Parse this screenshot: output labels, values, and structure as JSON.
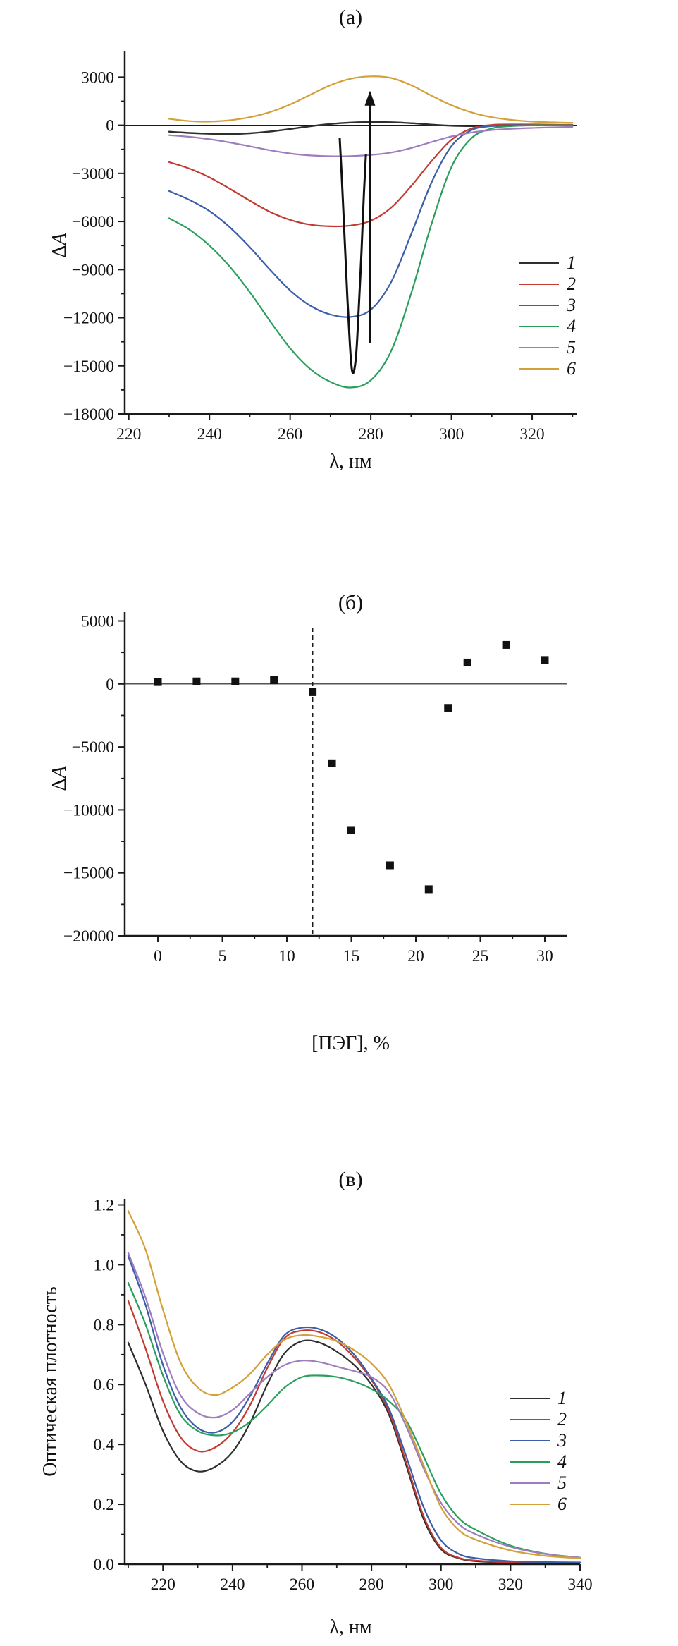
{
  "figure_background": "#ffffff",
  "axis_color": "#1a1a1a",
  "chart_data": [
    {
      "id": "a",
      "type": "line",
      "title": "(а)",
      "xlabel": "λ, нм",
      "ylabel_main": "Δ",
      "ylabel_italic": "A",
      "xlim": [
        219,
        331
      ],
      "ylim": [
        -18000,
        4600
      ],
      "x_ticks": [
        220,
        240,
        260,
        280,
        300,
        320
      ],
      "x_tick_labels": [
        "220",
        "240",
        "260",
        "280",
        "300",
        "320"
      ],
      "x_minor": [
        230,
        250,
        270,
        290,
        310,
        330
      ],
      "y_ticks": [
        3000,
        0,
        -3000,
        -6000,
        -9000,
        -12000,
        -15000,
        -18000
      ],
      "y_tick_labels": [
        "3000",
        "0",
        "−3000",
        "−6000",
        "−9000",
        "−12000",
        "−15000",
        "−18000"
      ],
      "y_minor": [
        1500,
        -1500,
        -4500,
        -7500,
        -10500,
        -13500,
        -16500
      ],
      "zero_line": true,
      "grid": false,
      "legend_position": "right-center",
      "legend": [
        "1",
        "2",
        "3",
        "4",
        "5",
        "6"
      ],
      "x": [
        230,
        235,
        240,
        245,
        250,
        255,
        260,
        265,
        270,
        275,
        280,
        285,
        290,
        295,
        300,
        305,
        310,
        315,
        320,
        325,
        330
      ],
      "series": [
        {
          "name": "1",
          "color": "#2e2e2e",
          "width": 2.4,
          "y": [
            -400,
            -480,
            -530,
            -550,
            -500,
            -390,
            -230,
            -60,
            80,
            170,
            200,
            190,
            130,
            40,
            -30,
            -50,
            -40,
            -20,
            -10,
            0,
            0
          ]
        },
        {
          "name": "2",
          "color": "#c23b32",
          "width": 2.2,
          "y": [
            -2300,
            -2700,
            -3250,
            -3950,
            -4700,
            -5400,
            -5900,
            -6200,
            -6300,
            -6250,
            -5950,
            -5150,
            -3800,
            -2250,
            -900,
            -200,
            20,
            50,
            50,
            40,
            30
          ]
        },
        {
          "name": "3",
          "color": "#3b5ea9",
          "width": 2.2,
          "y": [
            -4100,
            -4650,
            -5350,
            -6350,
            -7600,
            -9000,
            -10300,
            -11250,
            -11800,
            -11950,
            -11500,
            -9800,
            -6800,
            -3600,
            -1300,
            -300,
            -50,
            0,
            0,
            0,
            0
          ]
        },
        {
          "name": "4",
          "color": "#2b9e5e",
          "width": 2.2,
          "y": [
            -5800,
            -6500,
            -7500,
            -8800,
            -10400,
            -12200,
            -13900,
            -15200,
            -16000,
            -16350,
            -15900,
            -14100,
            -10500,
            -6200,
            -2600,
            -800,
            -200,
            -50,
            0,
            0,
            0
          ]
        },
        {
          "name": "5",
          "color": "#9d7dbe",
          "width": 2.2,
          "y": [
            -620,
            -720,
            -870,
            -1070,
            -1310,
            -1560,
            -1760,
            -1880,
            -1930,
            -1920,
            -1850,
            -1700,
            -1420,
            -1050,
            -700,
            -450,
            -300,
            -220,
            -170,
            -130,
            -100
          ]
        },
        {
          "name": "6",
          "color": "#d4a03a",
          "width": 2.2,
          "y": [
            400,
            260,
            230,
            310,
            500,
            820,
            1300,
            1900,
            2500,
            2900,
            3050,
            2950,
            2500,
            1850,
            1250,
            800,
            500,
            330,
            230,
            180,
            150
          ]
        }
      ],
      "annotations": {
        "spike_curve": {
          "description": "narrow deep black V-shaped curve, minimum ≈ −15350 at ≈275.5 нм",
          "color": "#111111",
          "x": [
            272.3,
            272.8,
            273.5,
            274.2,
            274.8,
            275.3,
            275.8,
            276.4,
            277.0,
            277.7,
            278.3,
            278.8
          ],
          "y": [
            -800,
            -3200,
            -7000,
            -10800,
            -13600,
            -15200,
            -15350,
            -14200,
            -11500,
            -7800,
            -4200,
            -1800
          ]
        },
        "arrow_up": {
          "x": 279.8,
          "y_from": -13600,
          "y_to": 2150,
          "color": "#111111"
        }
      }
    },
    {
      "id": "b",
      "type": "scatter",
      "title": "(б)",
      "xlabel": "[ПЭГ], %",
      "ylabel_main": "Δ",
      "ylabel_italic": "A",
      "xlim": [
        -2.57,
        31.75
      ],
      "ylim": [
        -20000,
        5700
      ],
      "x_ticks": [
        0,
        5,
        10,
        15,
        20,
        25,
        30
      ],
      "x_tick_labels": [
        "0",
        "5",
        "10",
        "15",
        "20",
        "25",
        "30"
      ],
      "x_minor": [
        2.5,
        7.5,
        12.5,
        17.5,
        22.5,
        27.5
      ],
      "y_ticks": [
        5000,
        0,
        -5000,
        -10000,
        -15000,
        -20000
      ],
      "y_tick_labels": [
        "5000",
        "0",
        "−5000",
        "−10000",
        "−15000",
        "−20000"
      ],
      "y_minor": [
        2500,
        -2500,
        -7500,
        -12500,
        -17500
      ],
      "zero_line": true,
      "grid": false,
      "dashed_x": 12,
      "marker": "square",
      "marker_color": "#111111",
      "points": {
        "x": [
          0,
          3,
          6,
          9,
          12,
          13.5,
          15,
          18,
          21,
          22.5,
          24,
          27,
          30
        ],
        "y": [
          150,
          200,
          200,
          300,
          -650,
          -6300,
          -11600,
          -14400,
          -16300,
          -1900,
          1700,
          3100,
          1900
        ]
      }
    },
    {
      "id": "v",
      "type": "line",
      "title": "(в)",
      "xlabel": "λ, нм",
      "ylabel_main": "Оптическая плотность",
      "ylabel_italic": "",
      "xlim": [
        209,
        340
      ],
      "ylim": [
        0,
        1.22
      ],
      "x_ticks": [
        220,
        240,
        260,
        280,
        300,
        320,
        340
      ],
      "x_tick_labels": [
        "220",
        "240",
        "260",
        "280",
        "300",
        "320",
        "340"
      ],
      "x_minor": [
        210,
        230,
        250,
        270,
        290,
        310,
        330
      ],
      "y_ticks": [
        1.2,
        1.0,
        0.8,
        0.6,
        0.4,
        0.2,
        0.0
      ],
      "y_tick_labels": [
        "1.2",
        "1.0",
        "0.8",
        "0.6",
        "0.4",
        "0.2",
        "0.0"
      ],
      "y_minor": [
        1.1,
        0.9,
        0.7,
        0.5,
        0.3,
        0.1
      ],
      "zero_line": false,
      "grid": false,
      "legend_position": "right-center",
      "legend": [
        "1",
        "2",
        "3",
        "4",
        "5",
        "6"
      ],
      "x": [
        210,
        215,
        220,
        225,
        230,
        235,
        240,
        245,
        250,
        255,
        260,
        265,
        270,
        275,
        280,
        285,
        290,
        295,
        300,
        305,
        310,
        320,
        330,
        340
      ],
      "series": [
        {
          "name": "1",
          "color": "#2e2e2e",
          "width": 2.2,
          "y": [
            0.74,
            0.6,
            0.445,
            0.345,
            0.31,
            0.325,
            0.375,
            0.47,
            0.6,
            0.705,
            0.745,
            0.74,
            0.71,
            0.665,
            0.6,
            0.5,
            0.33,
            0.15,
            0.05,
            0.02,
            0.01,
            0.005,
            0.004,
            0.004
          ]
        },
        {
          "name": "2",
          "color": "#c23b32",
          "width": 2.2,
          "y": [
            0.88,
            0.72,
            0.545,
            0.425,
            0.378,
            0.39,
            0.44,
            0.53,
            0.655,
            0.755,
            0.78,
            0.775,
            0.745,
            0.69,
            0.615,
            0.51,
            0.34,
            0.16,
            0.055,
            0.022,
            0.012,
            0.006,
            0.005,
            0.005
          ]
        },
        {
          "name": "3",
          "color": "#3b5ea9",
          "width": 2.2,
          "y": [
            1.03,
            0.865,
            0.665,
            0.525,
            0.455,
            0.44,
            0.475,
            0.56,
            0.67,
            0.765,
            0.79,
            0.785,
            0.755,
            0.7,
            0.62,
            0.52,
            0.36,
            0.19,
            0.08,
            0.035,
            0.02,
            0.01,
            0.007,
            0.006
          ]
        },
        {
          "name": "4",
          "color": "#2b9e5e",
          "width": 2.2,
          "y": [
            0.94,
            0.8,
            0.63,
            0.5,
            0.445,
            0.43,
            0.44,
            0.475,
            0.53,
            0.59,
            0.625,
            0.63,
            0.625,
            0.61,
            0.585,
            0.545,
            0.48,
            0.36,
            0.235,
            0.155,
            0.115,
            0.062,
            0.035,
            0.022
          ]
        },
        {
          "name": "5",
          "color": "#9d7dbe",
          "width": 2.2,
          "y": [
            1.04,
            0.89,
            0.705,
            0.565,
            0.505,
            0.49,
            0.515,
            0.57,
            0.625,
            0.665,
            0.68,
            0.675,
            0.66,
            0.645,
            0.625,
            0.575,
            0.46,
            0.32,
            0.205,
            0.135,
            0.1,
            0.058,
            0.034,
            0.022
          ]
        },
        {
          "name": "6",
          "color": "#d4a03a",
          "width": 2.2,
          "y": [
            1.18,
            1.05,
            0.85,
            0.675,
            0.59,
            0.565,
            0.59,
            0.635,
            0.7,
            0.75,
            0.765,
            0.76,
            0.745,
            0.715,
            0.67,
            0.6,
            0.475,
            0.33,
            0.19,
            0.115,
            0.082,
            0.046,
            0.028,
            0.02
          ]
        }
      ]
    }
  ]
}
